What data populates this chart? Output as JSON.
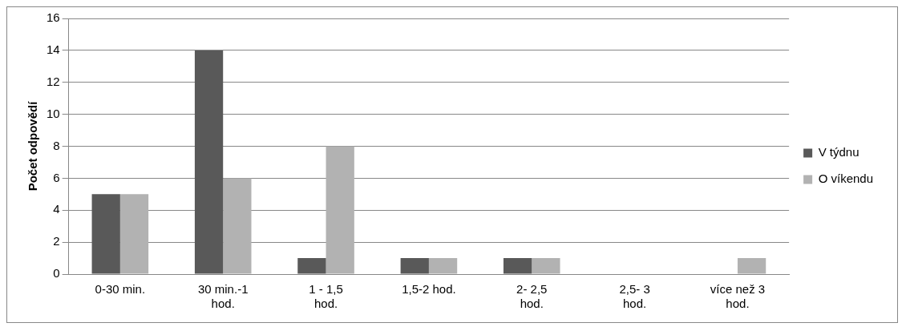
{
  "chart_data": {
    "type": "bar",
    "ylabel": "Počet odpovědí",
    "categories": [
      "0-30 min.",
      "30 min.-1 hod.",
      "1 - 1,5 hod.",
      "1,5-2 hod.",
      "2- 2,5 hod.",
      "2,5- 3 hod.",
      "více než 3 hod."
    ],
    "series": [
      {
        "name": "V týdnu",
        "color": "#595959",
        "values": [
          5,
          14,
          1,
          1,
          1,
          0,
          0
        ]
      },
      {
        "name": "O víkendu",
        "color": "#b2b2b2",
        "values": [
          5,
          6,
          8,
          1,
          1,
          0,
          1
        ]
      }
    ],
    "ylim": [
      0,
      16
    ],
    "yticks": [
      0,
      2,
      4,
      6,
      8,
      10,
      12,
      14,
      16
    ],
    "grid": "y",
    "legend": "right"
  }
}
